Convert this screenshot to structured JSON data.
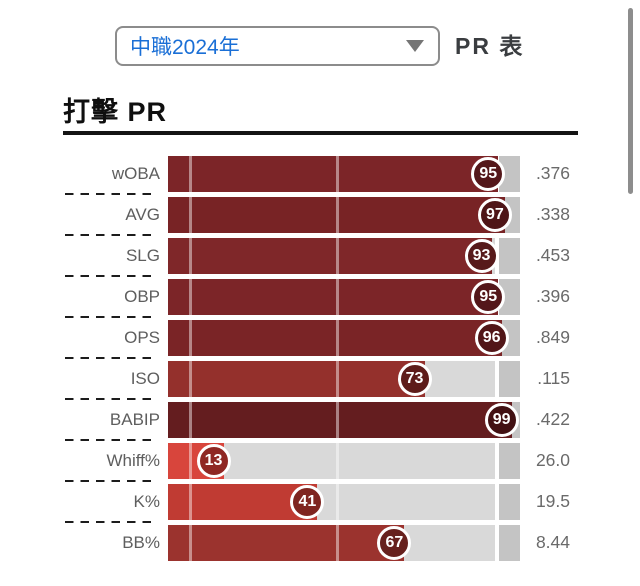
{
  "toolbar": {
    "season_select": {
      "value": "中職2024年"
    },
    "pr_table_label": "PR 表"
  },
  "page": {
    "title": "打擊 PR"
  },
  "chart_data": {
    "type": "bar",
    "orientation": "horizontal",
    "title": "打擊 PR",
    "xlabel": "",
    "ylabel": "",
    "xlim": [
      0,
      100
    ],
    "gridlines_x": [
      6,
      50
    ],
    "track_color": "#d9d9d9",
    "track_cap_color": "#c4c4c4",
    "rows": [
      {
        "label": "wOBA",
        "pr": 95,
        "display_value": ".376",
        "bar_color": "#7c2528",
        "badge_color": "#54171a"
      },
      {
        "label": "AVG",
        "pr": 97,
        "display_value": ".338",
        "bar_color": "#782325",
        "badge_color": "#4f1517"
      },
      {
        "label": "SLG",
        "pr": 93,
        "display_value": ".453",
        "bar_color": "#7f2729",
        "badge_color": "#571a1b"
      },
      {
        "label": "OBP",
        "pr": 95,
        "display_value": ".396",
        "bar_color": "#7c2528",
        "badge_color": "#54171a"
      },
      {
        "label": "OPS",
        "pr": 96,
        "display_value": ".849",
        "bar_color": "#7a2426",
        "badge_color": "#521618"
      },
      {
        "label": "ISO",
        "pr": 73,
        "display_value": ".115",
        "bar_color": "#94302c",
        "badge_color": "#5e1c1a"
      },
      {
        "label": "BABIP",
        "pr": 99,
        "display_value": ".422",
        "bar_color": "#641d1f",
        "badge_color": "#421113"
      },
      {
        "label": "Whiff%",
        "pr": 13,
        "display_value": "26.0",
        "bar_color": "#d8453c",
        "badge_color": "#8f2723"
      },
      {
        "label": "K%",
        "pr": 41,
        "display_value": "19.5",
        "bar_color": "#c03b33",
        "badge_color": "#7f2520"
      },
      {
        "label": "BB%",
        "pr": 67,
        "display_value": "8.44",
        "bar_color": "#9b332e",
        "badge_color": "#67211e"
      }
    ]
  }
}
